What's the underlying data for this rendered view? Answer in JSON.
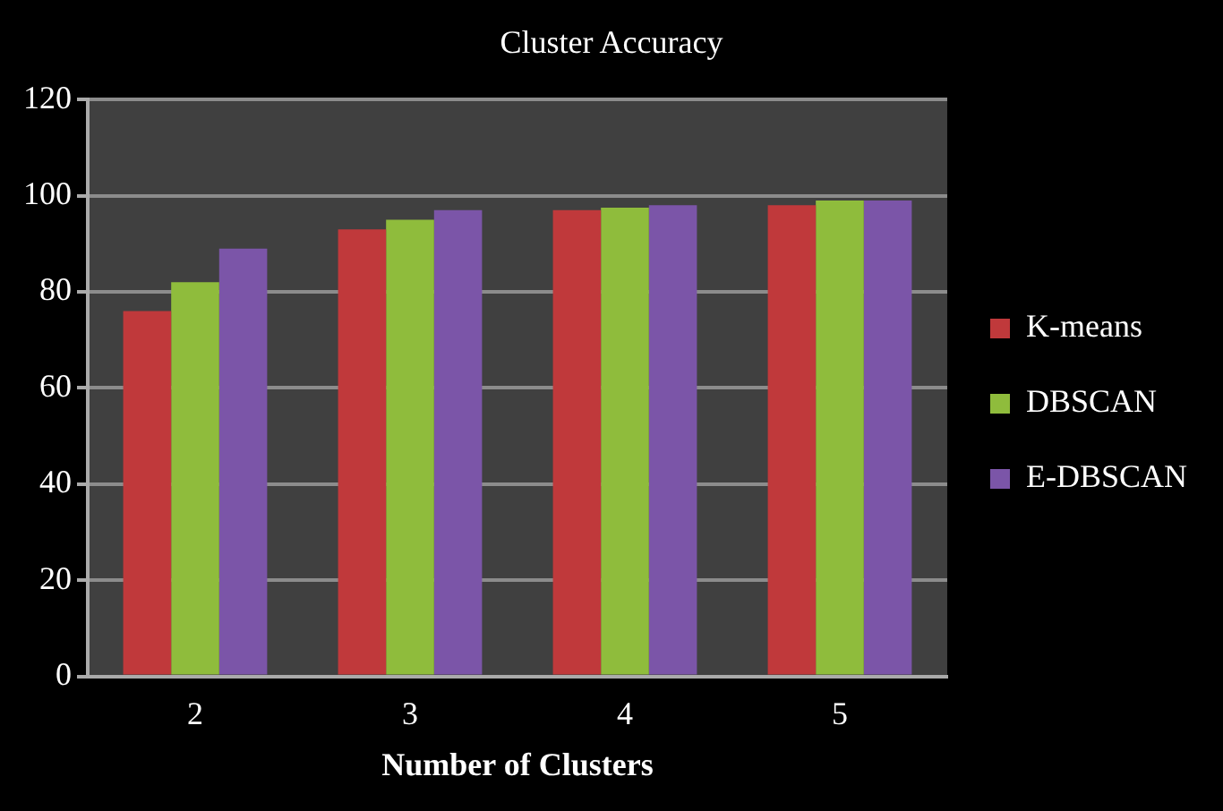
{
  "chart_data": {
    "type": "bar",
    "title": "Cluster Accuracy",
    "xlabel": "Number of Clusters",
    "categories": [
      "2",
      "3",
      "4",
      "5"
    ],
    "series": [
      {
        "name": "K-means",
        "color": "#c0393b",
        "values": [
          76,
          93,
          97,
          98
        ]
      },
      {
        "name": "DBSCAN",
        "color": "#8fbc3c",
        "values": [
          82,
          95,
          97.5,
          99
        ]
      },
      {
        "name": "E-DBSCAN",
        "color": "#7b55a8",
        "values": [
          89,
          97,
          98,
          99
        ]
      }
    ],
    "ylim": [
      0,
      120
    ],
    "yticks": [
      0,
      20,
      40,
      60,
      80,
      100,
      120
    ],
    "grid": "y",
    "legend": "right"
  }
}
